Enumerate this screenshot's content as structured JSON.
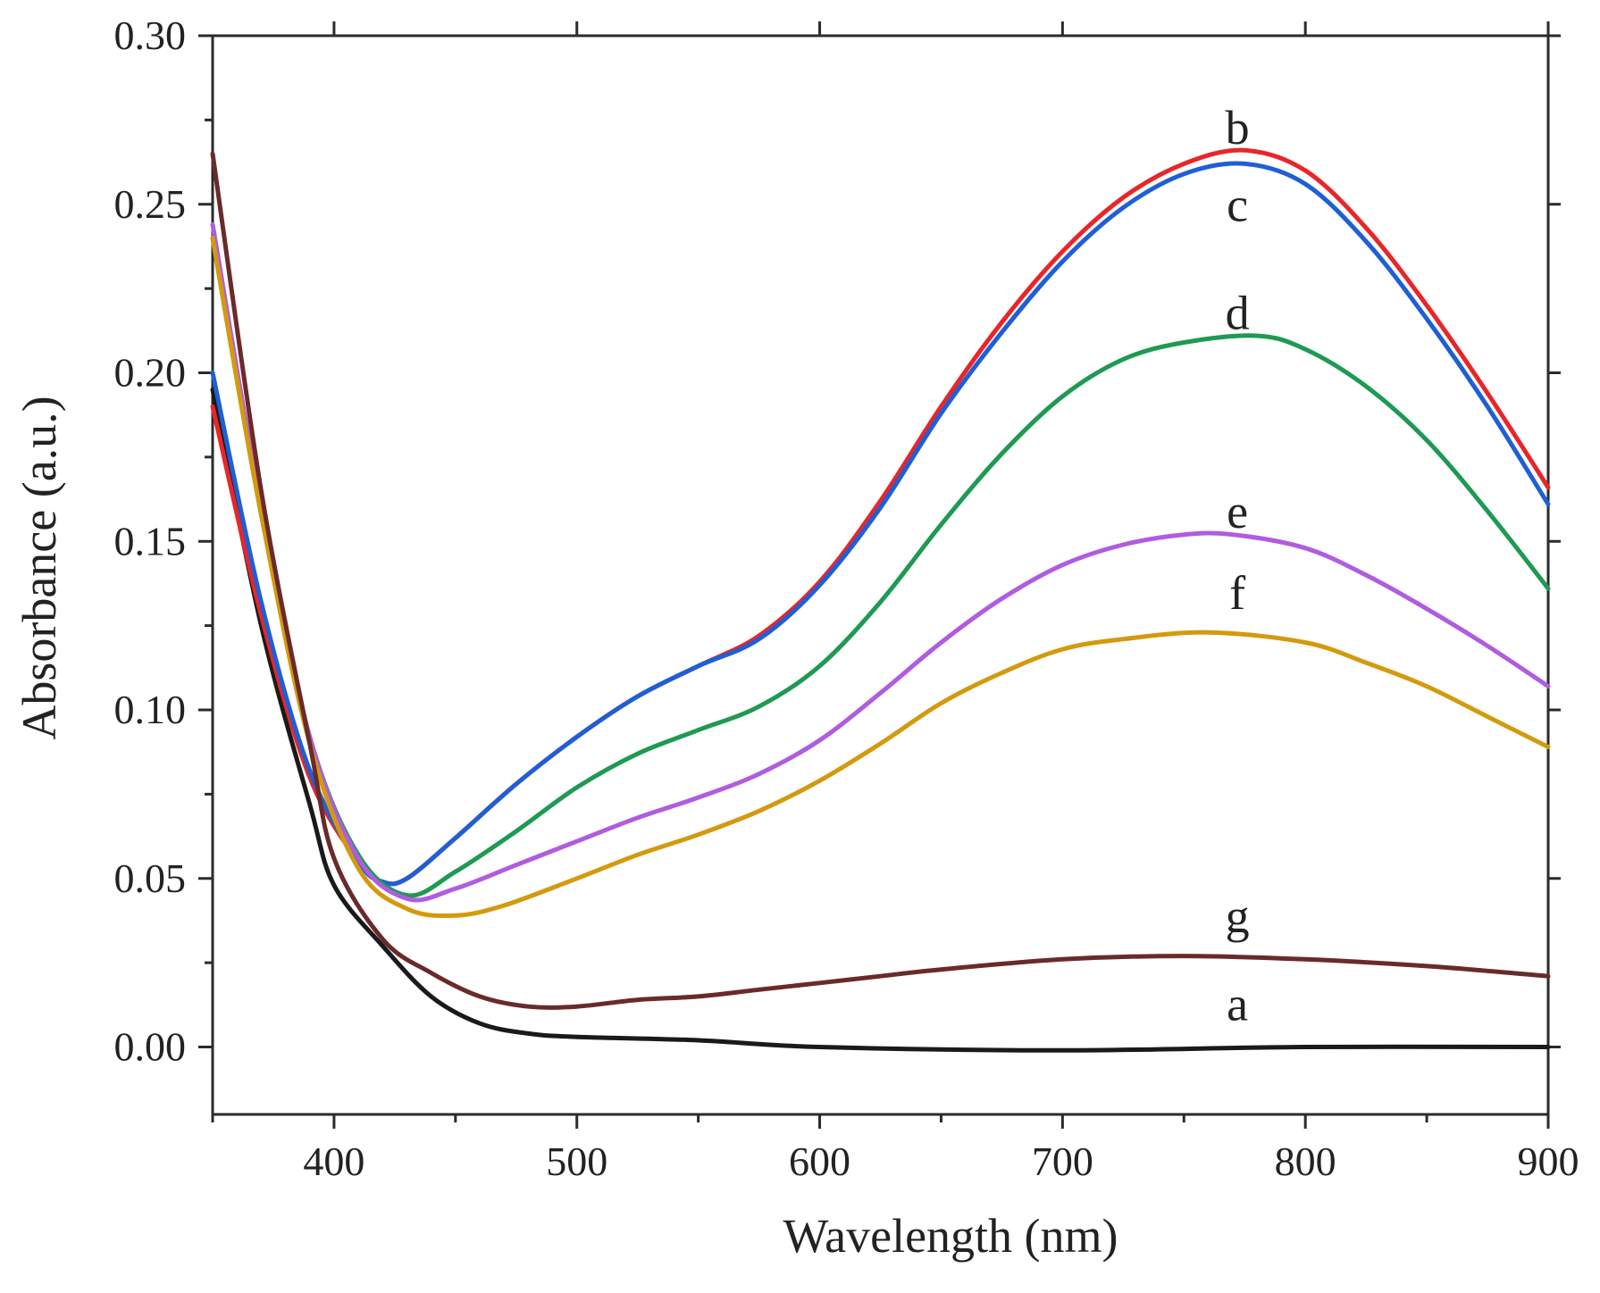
{
  "chart_data": {
    "type": "line",
    "title": "",
    "xlabel": "Wavelength (nm)",
    "ylabel": "Absorbance (a.u.)",
    "xlim": [
      350,
      900
    ],
    "ylim": [
      -0.02,
      0.3
    ],
    "x_ticks": [
      400,
      500,
      600,
      700,
      800,
      900
    ],
    "x_tick_labels": [
      "400",
      "500",
      "600",
      "700",
      "800",
      "900"
    ],
    "y_ticks": [
      0.0,
      0.05,
      0.1,
      0.15,
      0.2,
      0.25,
      0.3
    ],
    "y_tick_labels": [
      "0.00",
      "0.05",
      "0.10",
      "0.15",
      "0.20",
      "0.25",
      "0.30"
    ],
    "grid": false,
    "legend": "none",
    "series": [
      {
        "name": "a",
        "color": "#1a1a1a",
        "label_at": [
          772,
          0.008
        ],
        "points": [
          [
            350,
            0.195
          ],
          [
            370,
            0.125
          ],
          [
            390,
            0.072
          ],
          [
            400,
            0.048
          ],
          [
            420,
            0.03
          ],
          [
            440,
            0.015
          ],
          [
            460,
            0.007
          ],
          [
            480,
            0.004
          ],
          [
            500,
            0.003
          ],
          [
            550,
            0.002
          ],
          [
            600,
            0.0
          ],
          [
            700,
            -0.001
          ],
          [
            800,
            0.0
          ],
          [
            900,
            0.0
          ]
        ]
      },
      {
        "name": "b",
        "color": "#e8262a",
        "label_at": [
          772,
          0.268
        ],
        "points": [
          [
            350,
            0.19
          ],
          [
            370,
            0.128
          ],
          [
            390,
            0.08
          ],
          [
            410,
            0.055
          ],
          [
            420,
            0.049
          ],
          [
            430,
            0.05
          ],
          [
            450,
            0.062
          ],
          [
            475,
            0.078
          ],
          [
            500,
            0.092
          ],
          [
            525,
            0.104
          ],
          [
            550,
            0.113
          ],
          [
            575,
            0.122
          ],
          [
            600,
            0.138
          ],
          [
            625,
            0.162
          ],
          [
            650,
            0.19
          ],
          [
            675,
            0.215
          ],
          [
            700,
            0.236
          ],
          [
            725,
            0.252
          ],
          [
            750,
            0.262
          ],
          [
            775,
            0.266
          ],
          [
            800,
            0.26
          ],
          [
            825,
            0.243
          ],
          [
            850,
            0.22
          ],
          [
            875,
            0.194
          ],
          [
            900,
            0.166
          ]
        ]
      },
      {
        "name": "c",
        "color": "#1f5fd6",
        "label_at": [
          772,
          0.245
        ],
        "points": [
          [
            350,
            0.2
          ],
          [
            370,
            0.132
          ],
          [
            390,
            0.082
          ],
          [
            410,
            0.055
          ],
          [
            420,
            0.049
          ],
          [
            430,
            0.05
          ],
          [
            450,
            0.062
          ],
          [
            475,
            0.078
          ],
          [
            500,
            0.092
          ],
          [
            525,
            0.104
          ],
          [
            550,
            0.113
          ],
          [
            575,
            0.121
          ],
          [
            600,
            0.137
          ],
          [
            625,
            0.16
          ],
          [
            650,
            0.188
          ],
          [
            675,
            0.212
          ],
          [
            700,
            0.233
          ],
          [
            725,
            0.249
          ],
          [
            750,
            0.259
          ],
          [
            775,
            0.262
          ],
          [
            800,
            0.256
          ],
          [
            825,
            0.239
          ],
          [
            850,
            0.216
          ],
          [
            875,
            0.19
          ],
          [
            900,
            0.161
          ]
        ]
      },
      {
        "name": "d",
        "color": "#1e9a52",
        "label_at": [
          772,
          0.213
        ],
        "points": [
          [
            350,
            0.24
          ],
          [
            370,
            0.158
          ],
          [
            390,
            0.092
          ],
          [
            410,
            0.057
          ],
          [
            430,
            0.045
          ],
          [
            450,
            0.052
          ],
          [
            475,
            0.064
          ],
          [
            500,
            0.077
          ],
          [
            525,
            0.087
          ],
          [
            550,
            0.094
          ],
          [
            575,
            0.101
          ],
          [
            600,
            0.113
          ],
          [
            625,
            0.132
          ],
          [
            650,
            0.155
          ],
          [
            675,
            0.176
          ],
          [
            700,
            0.193
          ],
          [
            725,
            0.204
          ],
          [
            750,
            0.209
          ],
          [
            780,
            0.211
          ],
          [
            800,
            0.207
          ],
          [
            825,
            0.196
          ],
          [
            850,
            0.18
          ],
          [
            875,
            0.159
          ],
          [
            900,
            0.136
          ]
        ]
      },
      {
        "name": "e",
        "color": "#b05ce0",
        "label_at": [
          772,
          0.154
        ],
        "points": [
          [
            350,
            0.244
          ],
          [
            370,
            0.16
          ],
          [
            390,
            0.092
          ],
          [
            410,
            0.056
          ],
          [
            430,
            0.044
          ],
          [
            450,
            0.047
          ],
          [
            475,
            0.054
          ],
          [
            500,
            0.061
          ],
          [
            525,
            0.068
          ],
          [
            550,
            0.074
          ],
          [
            575,
            0.081
          ],
          [
            600,
            0.091
          ],
          [
            625,
            0.105
          ],
          [
            650,
            0.12
          ],
          [
            675,
            0.133
          ],
          [
            700,
            0.143
          ],
          [
            725,
            0.149
          ],
          [
            750,
            0.152
          ],
          [
            770,
            0.152
          ],
          [
            800,
            0.148
          ],
          [
            825,
            0.14
          ],
          [
            850,
            0.13
          ],
          [
            875,
            0.119
          ],
          [
            900,
            0.107
          ]
        ]
      },
      {
        "name": "f",
        "color": "#d49a0e",
        "label_at": [
          772,
          0.13
        ],
        "points": [
          [
            350,
            0.24
          ],
          [
            370,
            0.158
          ],
          [
            390,
            0.09
          ],
          [
            410,
            0.053
          ],
          [
            430,
            0.041
          ],
          [
            450,
            0.039
          ],
          [
            470,
            0.042
          ],
          [
            500,
            0.05
          ],
          [
            525,
            0.057
          ],
          [
            550,
            0.063
          ],
          [
            575,
            0.07
          ],
          [
            600,
            0.079
          ],
          [
            625,
            0.09
          ],
          [
            650,
            0.102
          ],
          [
            675,
            0.111
          ],
          [
            700,
            0.118
          ],
          [
            725,
            0.121
          ],
          [
            760,
            0.123
          ],
          [
            800,
            0.12
          ],
          [
            825,
            0.114
          ],
          [
            850,
            0.107
          ],
          [
            875,
            0.098
          ],
          [
            900,
            0.089
          ]
        ]
      },
      {
        "name": "g",
        "color": "#6b2a2a",
        "label_at": [
          772,
          0.034
        ],
        "points": [
          [
            350,
            0.265
          ],
          [
            370,
            0.165
          ],
          [
            390,
            0.09
          ],
          [
            400,
            0.056
          ],
          [
            420,
            0.032
          ],
          [
            440,
            0.022
          ],
          [
            460,
            0.015
          ],
          [
            480,
            0.012
          ],
          [
            500,
            0.012
          ],
          [
            525,
            0.014
          ],
          [
            550,
            0.015
          ],
          [
            575,
            0.017
          ],
          [
            600,
            0.019
          ],
          [
            625,
            0.021
          ],
          [
            650,
            0.023
          ],
          [
            700,
            0.026
          ],
          [
            750,
            0.027
          ],
          [
            800,
            0.026
          ],
          [
            850,
            0.024
          ],
          [
            900,
            0.021
          ]
        ]
      }
    ]
  }
}
